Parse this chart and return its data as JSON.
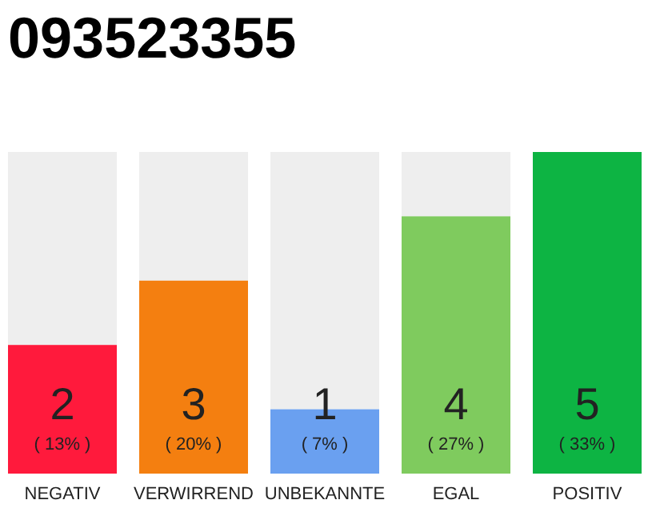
{
  "chart_data": {
    "type": "bar",
    "title": "093523355",
    "categories": [
      "NEGATIV",
      "VERWIRREND",
      "UNBEKANNTE",
      "EGAL",
      "POSITIV"
    ],
    "values": [
      2,
      3,
      1,
      4,
      5
    ],
    "colors": [
      "#ff1a3c",
      "#f47f10",
      "#6aa0f0",
      "#7fcb5e",
      "#0db443"
    ],
    "ylim": [
      0,
      5
    ],
    "tick_labels": "x",
    "data_labels": true,
    "annotations": [
      "( 13% )",
      "( 20% )",
      "( 7% )",
      "( 27% )",
      "( 33% )"
    ]
  }
}
